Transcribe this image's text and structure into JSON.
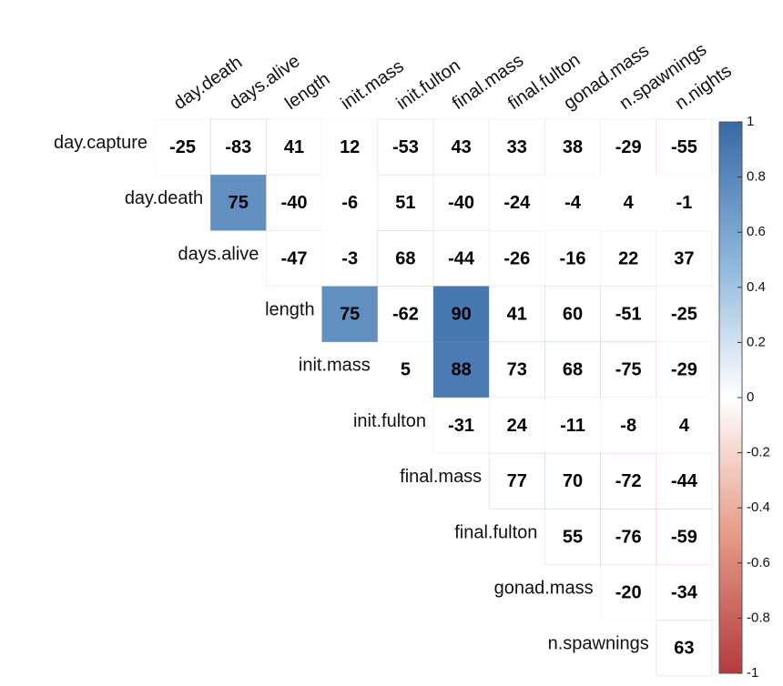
{
  "chart_data": {
    "type": "heatmap",
    "columns": [
      "day.death",
      "days.alive",
      "length",
      "init.mass",
      "init.fulton",
      "final.mass",
      "final.fulton",
      "gonad.mass",
      "n.spawnings",
      "n.nights"
    ],
    "rows": [
      {
        "label": "day.capture",
        "values": [
          -25,
          -83,
          41,
          12,
          -53,
          43,
          33,
          38,
          -29,
          -55
        ],
        "significant": [
          false,
          false,
          false,
          false,
          false,
          false,
          false,
          false,
          false,
          false
        ]
      },
      {
        "label": "day.death",
        "values": [
          75,
          -40,
          -6,
          51,
          -40,
          -24,
          -4,
          4,
          -1
        ],
        "significant": [
          true,
          false,
          false,
          false,
          false,
          false,
          false,
          false,
          false
        ]
      },
      {
        "label": "days.alive",
        "values": [
          -47,
          -3,
          68,
          -44,
          -26,
          -16,
          22,
          37
        ],
        "significant": [
          false,
          false,
          false,
          false,
          false,
          false,
          false,
          false
        ]
      },
      {
        "label": "length",
        "values": [
          75,
          -62,
          90,
          41,
          60,
          -51,
          -25
        ],
        "significant": [
          true,
          false,
          true,
          false,
          false,
          false,
          false
        ]
      },
      {
        "label": "init.mass",
        "values": [
          5,
          88,
          73,
          68,
          -75,
          -29
        ],
        "significant": [
          false,
          true,
          false,
          false,
          false,
          false
        ]
      },
      {
        "label": "init.fulton",
        "values": [
          -31,
          24,
          -11,
          -8,
          4
        ],
        "significant": [
          false,
          false,
          false,
          false,
          false
        ]
      },
      {
        "label": "final.mass",
        "values": [
          77,
          70,
          -72,
          -44
        ],
        "significant": [
          false,
          false,
          false,
          false
        ]
      },
      {
        "label": "final.fulton",
        "values": [
          55,
          -76,
          -59
        ],
        "significant": [
          false,
          false,
          false
        ]
      },
      {
        "label": "gonad.mass",
        "values": [
          -20,
          -34
        ],
        "significant": [
          false,
          false
        ]
      },
      {
        "label": "n.spawnings",
        "values": [
          63
        ],
        "significant": [
          false
        ]
      }
    ],
    "colorscale": [
      [
        -1,
        "#b53a3f"
      ],
      [
        -0.5,
        "#e69a86"
      ],
      [
        0,
        "#ffffff"
      ],
      [
        0.5,
        "#8bb5da"
      ],
      [
        1,
        "#3769a6"
      ]
    ],
    "clim": [
      -1,
      1
    ],
    "cticks": [
      1,
      0.8,
      0.6,
      0.4,
      0.2,
      0,
      -0.2,
      -0.4,
      -0.6,
      -0.8,
      -1
    ]
  }
}
